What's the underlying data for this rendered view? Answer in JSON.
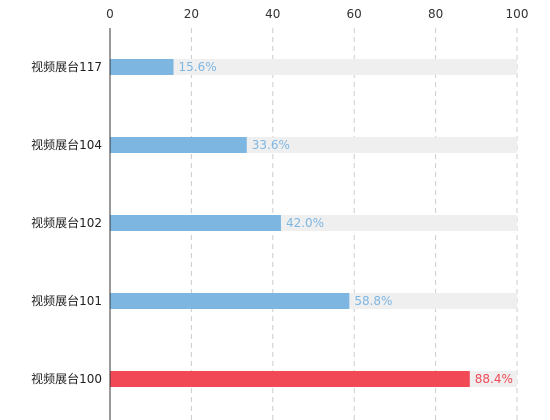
{
  "chart_data": {
    "type": "bar",
    "orientation": "horizontal",
    "categories": [
      "视频展台117",
      "视频展台104",
      "视频展台102",
      "视频展台101",
      "视频展台100"
    ],
    "values": [
      15.6,
      33.6,
      42.0,
      58.8,
      88.4
    ],
    "value_labels": [
      "15.6%",
      "33.6%",
      "42.0%",
      "58.8%",
      "88.4%"
    ],
    "xlim": [
      0,
      100
    ],
    "x_ticks": [
      0,
      20,
      40,
      60,
      80,
      100
    ],
    "x_axis_position": "top",
    "grid": "vertical-dashed",
    "background_bar_max": 100,
    "colors": {
      "bar": "#7eb6e2",
      "highlight": "#f24957",
      "track": "#efefef",
      "grid": "#cccccc",
      "axis": "#333333",
      "label_normal": "#7eb6e2",
      "label_highlight": "#f24957"
    },
    "highlight_index": 4
  }
}
